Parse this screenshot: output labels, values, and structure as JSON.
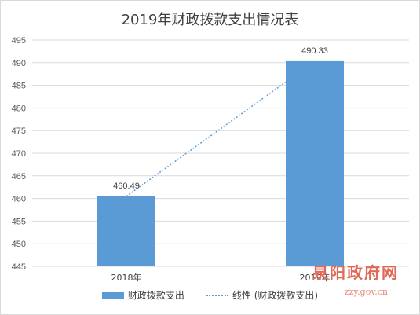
{
  "chart_data": {
    "type": "bar",
    "title": "2019年财政拨款支出情况表",
    "categories": [
      "2018年",
      "2019年"
    ],
    "series": [
      {
        "name": "财政拨款支出",
        "values": [
          460.49,
          490.33
        ],
        "color": "#5b9bd5"
      },
      {
        "name": "线性 (财政拨款支出)",
        "type": "trendline",
        "values": [
          460.49,
          490.33
        ],
        "color": "#5b9bd5",
        "style": "dotted"
      }
    ],
    "data_labels": [
      "460.49",
      "490.33"
    ],
    "y_ticks": [
      "445",
      "450",
      "455",
      "460",
      "465",
      "470",
      "475",
      "480",
      "485",
      "490",
      "495"
    ],
    "ylim": [
      445,
      495
    ],
    "grid": true,
    "legend_position": "bottom"
  },
  "watermark": {
    "text": "泉阳政府网",
    "sub": "zzy.gov.cn"
  }
}
